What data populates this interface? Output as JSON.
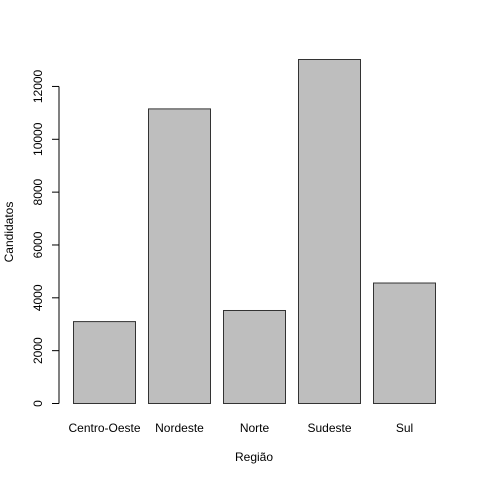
{
  "chart_data": {
    "type": "bar",
    "title": "",
    "xlabel": "Região",
    "ylabel": "Candidatos",
    "categories": [
      "Centro-Oeste",
      "Nordeste",
      "Norte",
      "Sudeste",
      "Sul"
    ],
    "values": [
      3100,
      11150,
      3520,
      13020,
      4560
    ],
    "ylim": [
      0,
      13020
    ],
    "yticks": [
      0,
      2000,
      4000,
      6000,
      8000,
      10000,
      12000
    ],
    "ytick_labels": [
      "0",
      "2000",
      "4000",
      "6000",
      "8000",
      "10000",
      "12000"
    ],
    "grid": false,
    "legend": "none",
    "colors": {
      "bar_fill": "#bebebe",
      "bar_stroke": "#333333",
      "axis": "#000000"
    }
  }
}
